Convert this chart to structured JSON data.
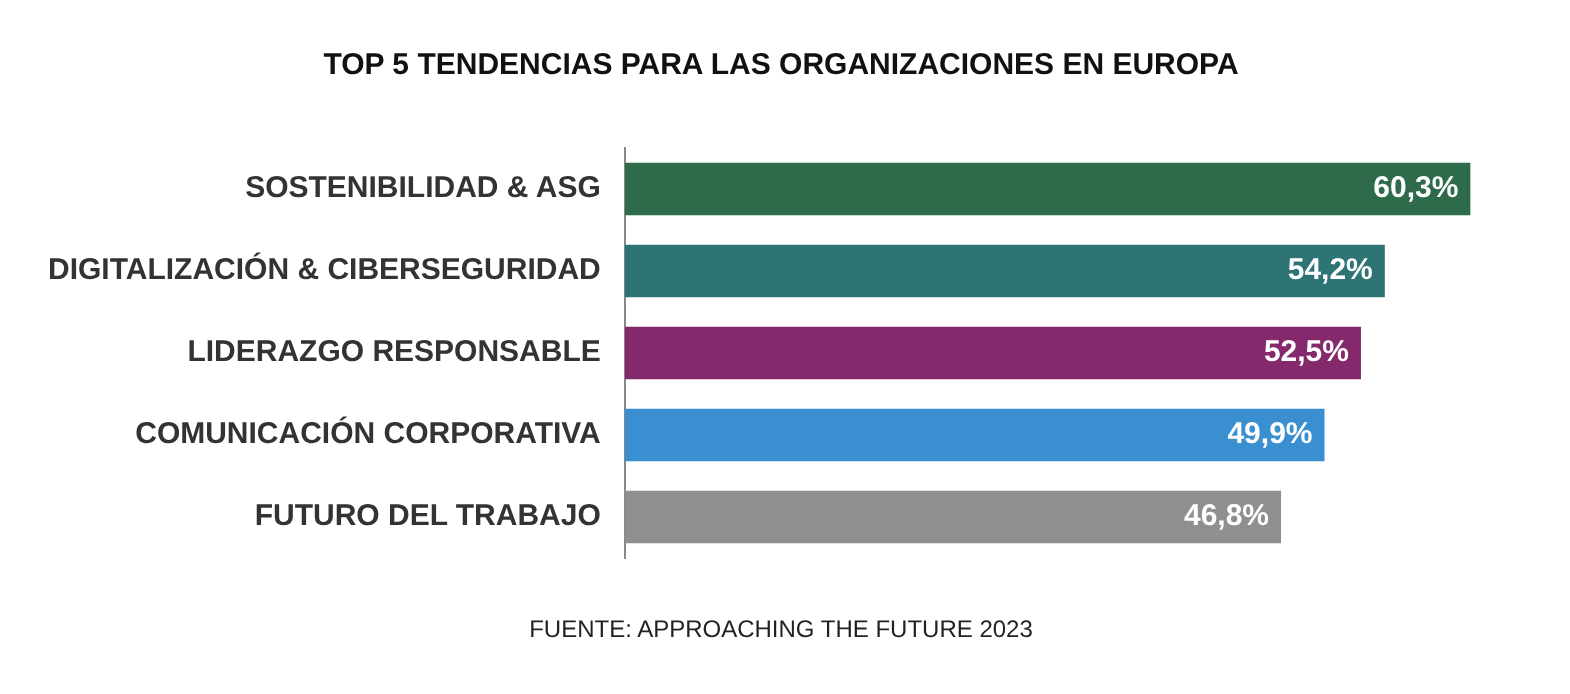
{
  "chart_data": {
    "type": "bar",
    "orientation": "horizontal",
    "title": "TOP 5 TENDENCIAS PARA LAS ORGANIZACIONES EN EUROPA",
    "categories": [
      "SOSTENIBILIDAD & ASG",
      "DIGITALIZACIÓN & CIBERSEGURIDAD",
      "LIDERAZGO RESPONSABLE",
      "COMUNICACIÓN CORPORATIVA",
      "FUTURO DEL TRABAJO"
    ],
    "values": [
      60.3,
      54.2,
      52.5,
      49.9,
      46.8
    ],
    "colors": [
      "#2e6b4b",
      "#2e7475",
      "#84296b",
      "#3a8fd0",
      "#8f8f8f"
    ],
    "value_labels": [
      "60,3%",
      "54,2%",
      "52,5%",
      "49,9%",
      "46,8%"
    ],
    "annotations": [
      "FUENTE: APPROACHING THE FUTURE 2023"
    ],
    "legend": false
  }
}
